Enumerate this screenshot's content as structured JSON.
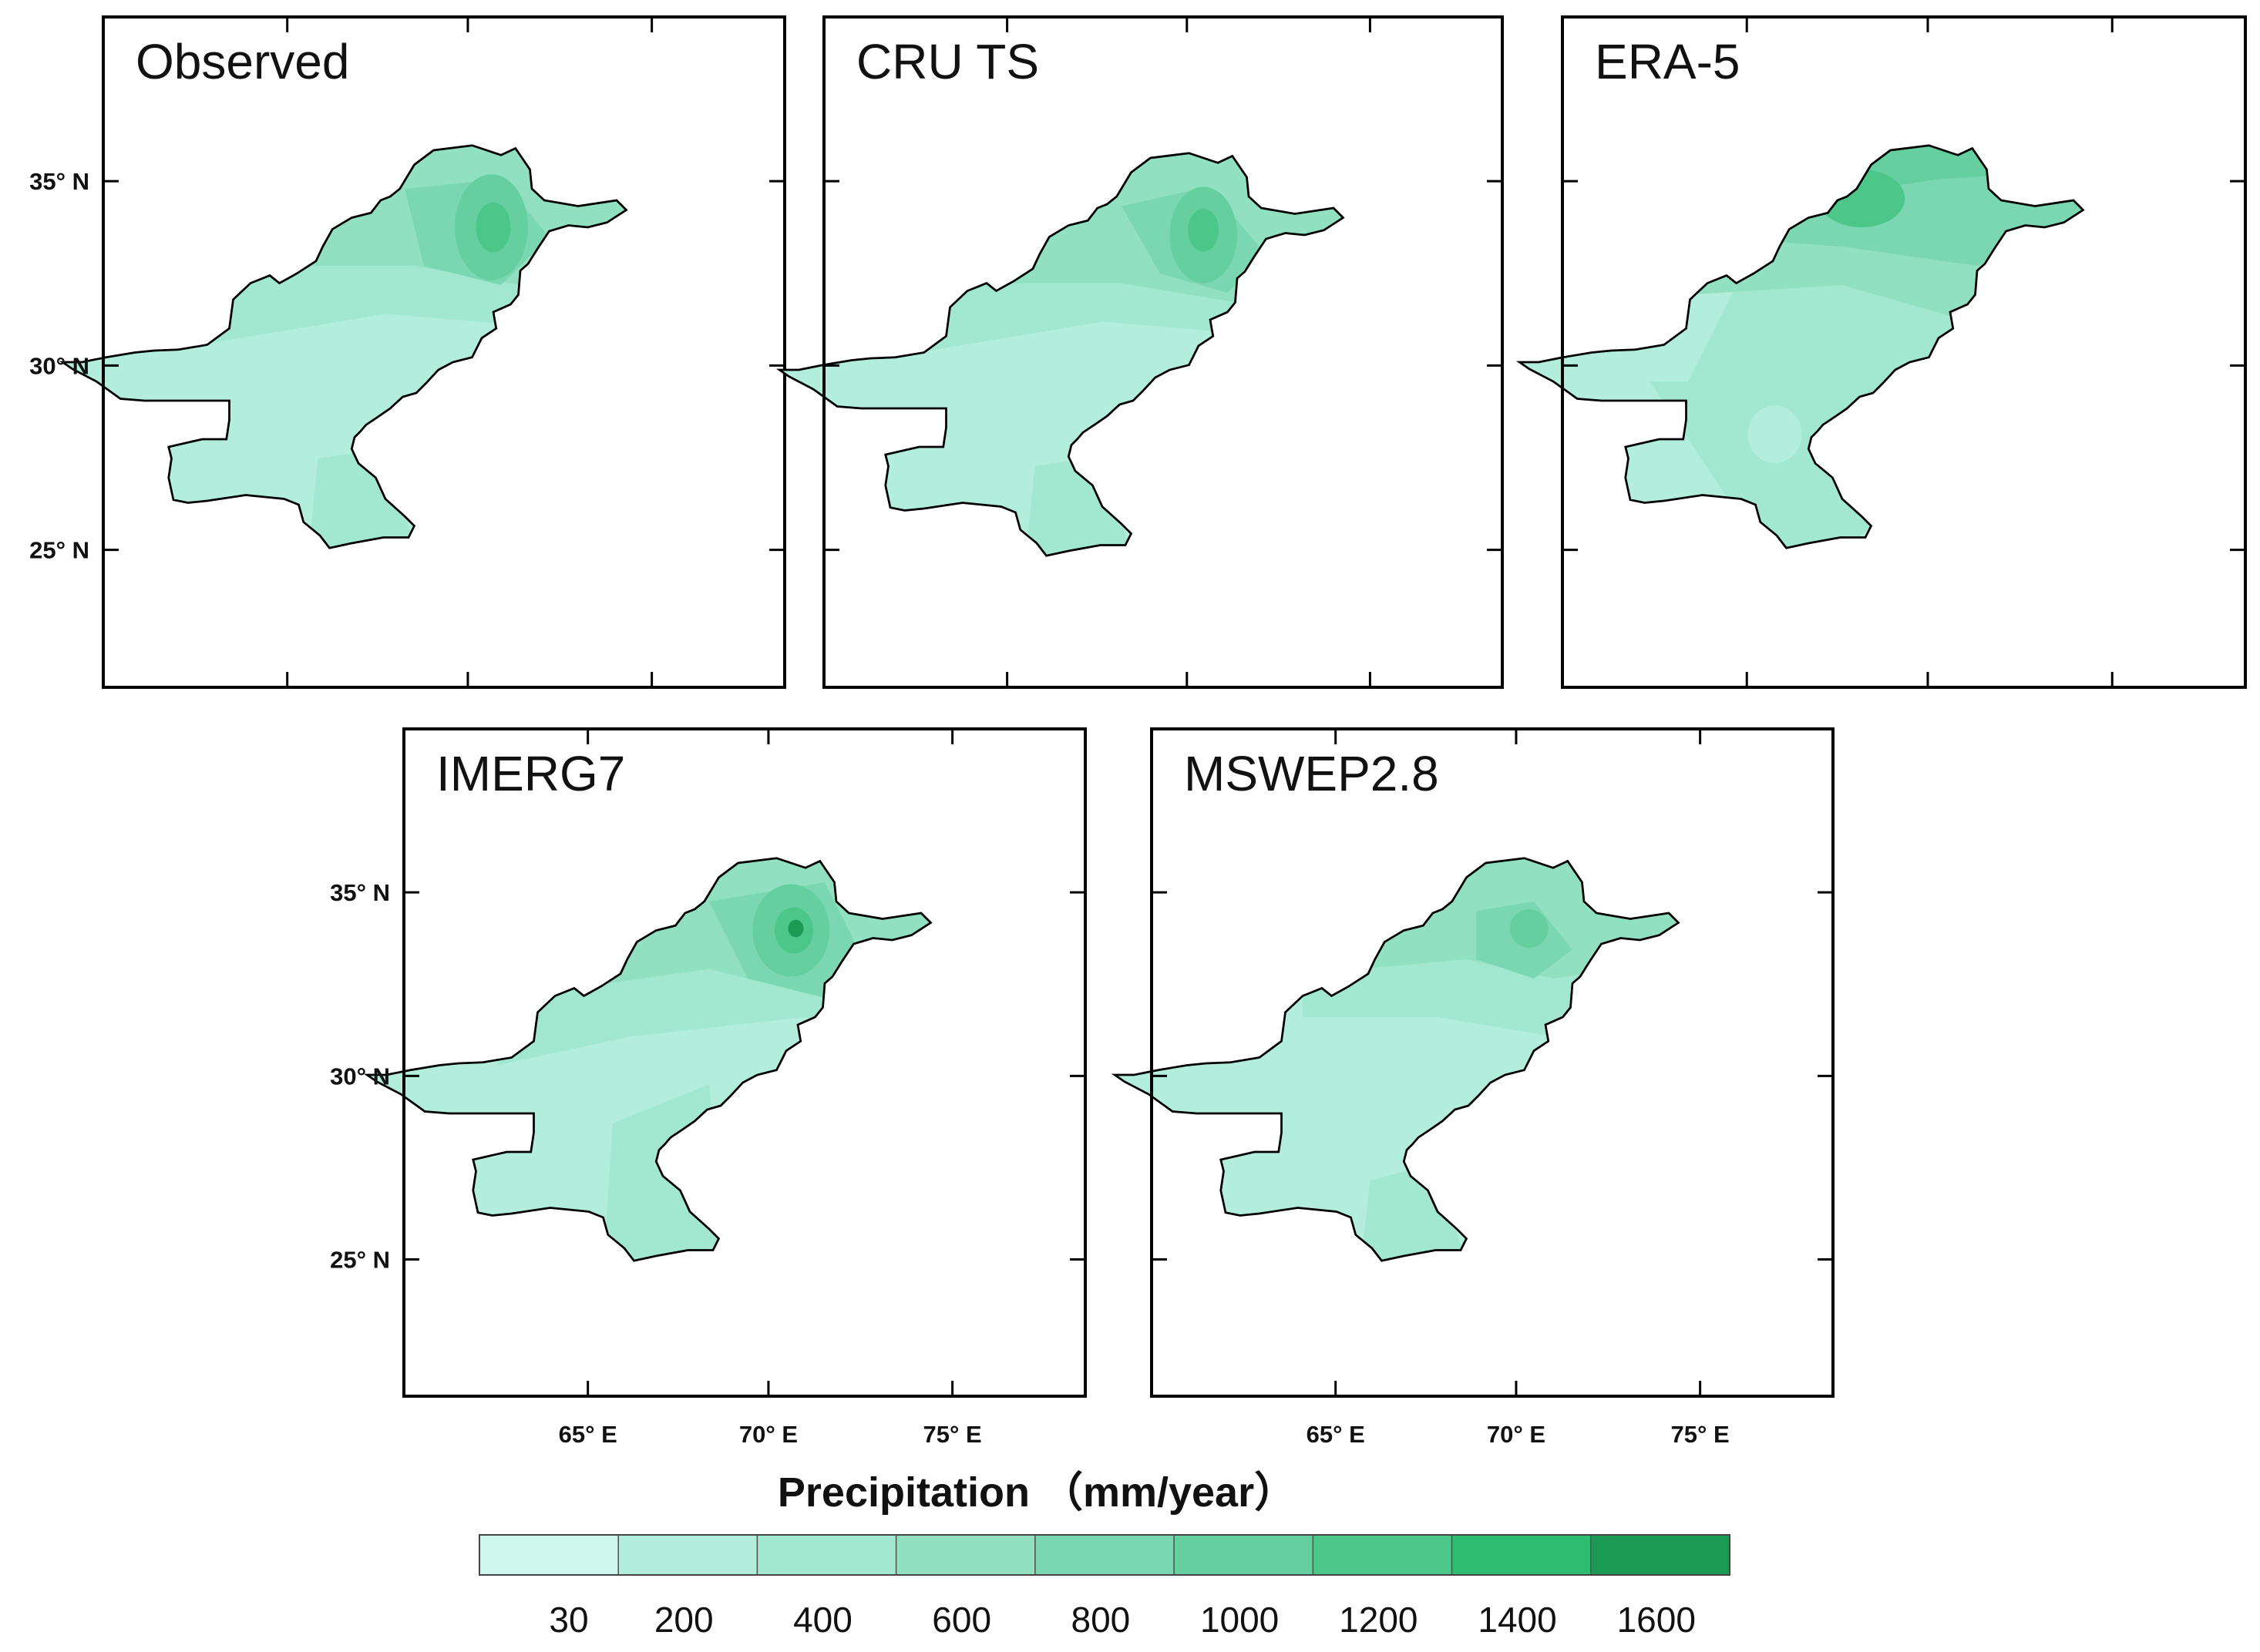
{
  "panels": [
    {
      "id": "observed",
      "title": "Observed"
    },
    {
      "id": "cru",
      "title": "CRU TS"
    },
    {
      "id": "era5",
      "title": "ERA-5"
    },
    {
      "id": "imerg",
      "title": "IMERG7"
    },
    {
      "id": "mswep",
      "title": "MSWEP2.8"
    }
  ],
  "lat_labels": [
    "35° N",
    "30° N",
    "25° N"
  ],
  "lon_labels": [
    "65° E",
    "70° E",
    "75° E"
  ],
  "legend": {
    "title": "Precipitation （mm/year）",
    "labels": [
      "30",
      "200",
      "400",
      "600",
      "800",
      "1000",
      "1200",
      "1400",
      "1600"
    ],
    "colors": [
      "#cdf7ec",
      "#b2eedb",
      "#a2e8d0",
      "#90e0c1",
      "#7bd7b1",
      "#66cf9f",
      "#4cc789",
      "#2ebd70",
      "#1c9a54"
    ]
  },
  "map_colors": {
    "base": "#b2eedb",
    "mid": "#a2e8d0",
    "upper": "#90e0c1",
    "high": "#7bd7b1",
    "higher": "#66cf9f",
    "peak": "#4cc789",
    "max": "#2ebd70",
    "extreme": "#1c9a54"
  }
}
